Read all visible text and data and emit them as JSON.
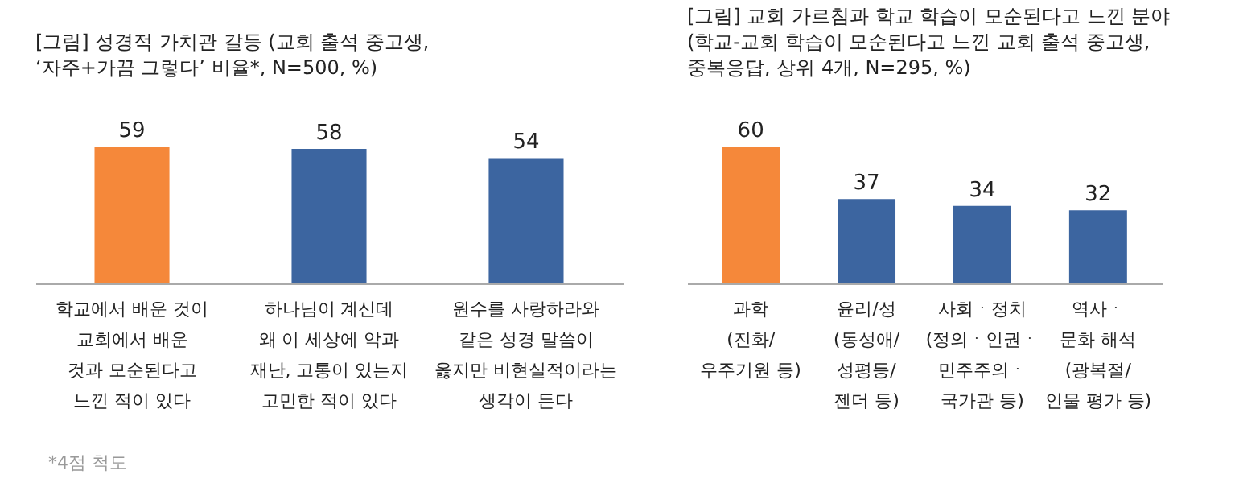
{
  "chart_data": [
    {
      "type": "bar",
      "title": "[그림] 성경적 가치관 갈등 (교회 출석 중고생,\n‘자주+가끔 그렇다’ 비율*, N=500, %)",
      "categories": [
        "학교에서 배운 것이\n교회에서 배운\n것과 모순된다고\n느낀 적이 있다",
        "하나님이 계신데\n왜 이 세상에 악과\n재난, 고통이 있는지\n고민한 적이 있다",
        "원수를 사랑하라와\n같은 성경 말씀이\n옳지만 비현실적이라는\n생각이 든다"
      ],
      "values": [
        59,
        58,
        54
      ],
      "colors": [
        "#f5883a",
        "#3c65a0",
        "#3c65a0"
      ],
      "data_labels": true,
      "annotations": [
        "*4점 척도"
      ]
    },
    {
      "type": "bar",
      "title": "[그림] 교회 가르침과 학교 학습이 모순된다고 느낀 분야\n(학교-교회 학습이 모순된다고 느낀 교회 출석 중고생,\n중복응답, 상위 4개, N=295, %)",
      "categories": [
        "과학\n(진화/\n우주기원 등)",
        "윤리/성\n(동성애/\n성평등/\n젠더 등)",
        "사회ㆍ정치\n(정의ㆍ인권ㆍ\n민주주의ㆍ\n국가관 등)",
        "역사ㆍ\n문화 해석\n(광복절/\n인물 평가 등)"
      ],
      "values": [
        60,
        37,
        34,
        32
      ],
      "colors": [
        "#f5883a",
        "#3c65a0",
        "#3c65a0",
        "#3c65a0"
      ],
      "data_labels": true
    }
  ]
}
